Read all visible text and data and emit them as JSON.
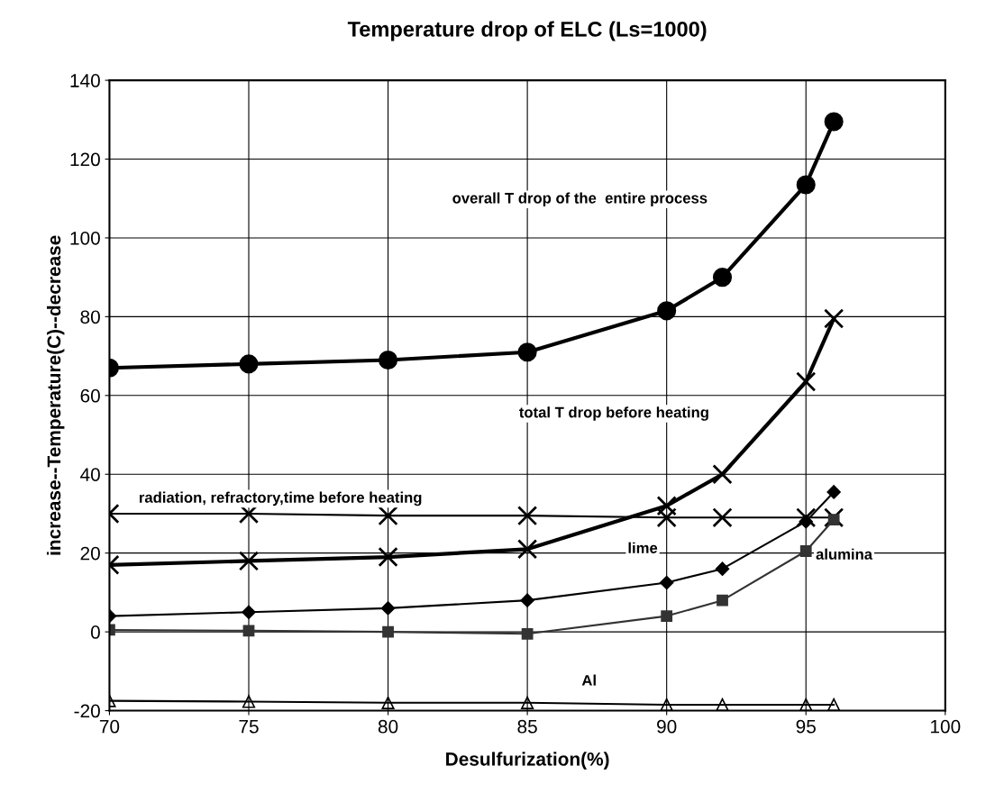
{
  "chart_data": {
    "type": "line",
    "title": "Temperature drop of ELC (Ls=1000)",
    "xlabel": "Desulfurization(%)",
    "ylabel": "increase--Temperature(C)--decrease",
    "x": [
      70,
      75,
      80,
      85,
      90,
      92,
      95,
      96
    ],
    "series": [
      {
        "color": "#000000",
        "marker": "circle",
        "values": [
          67,
          68,
          69,
          71,
          81.5,
          90,
          113.5,
          129.5
        ]
      },
      {
        "color": "#000000",
        "marker": "cross",
        "values": [
          17,
          18,
          19,
          21,
          32,
          40,
          63.5,
          79.5
        ]
      },
      {
        "color": "#000000",
        "marker": "cross",
        "values": [
          30,
          30,
          29.5,
          29.5,
          29,
          29,
          29,
          29
        ]
      },
      {
        "color": "#000000",
        "marker": "diamond",
        "values": [
          4,
          5,
          6,
          8,
          12.5,
          16,
          28,
          35.5
        ]
      },
      {
        "color": "#333333",
        "marker": "square",
        "values": [
          0.5,
          0.3,
          0,
          -0.5,
          4,
          8,
          20.5,
          28.5
        ]
      },
      {
        "color": "#000000",
        "marker": "triangle",
        "values": [
          -17.5,
          -17.7,
          -18,
          -18,
          -18.5,
          -18.5,
          -18.5,
          -18.5
        ]
      }
    ],
    "annotations": [
      "overall T drop of the  entire process",
      "total T drop before heating",
      "radiation, refractory,time before heating",
      "lime",
      "alumina",
      "Al"
    ],
    "xlim": [
      70,
      100
    ],
    "xticks": [
      70,
      75,
      80,
      85,
      90,
      95,
      100
    ],
    "ylim": [
      -20,
      140
    ],
    "yticks": [
      -20,
      0,
      20,
      40,
      60,
      80,
      100,
      120,
      140
    ],
    "grid": true,
    "line_style": "solid"
  }
}
